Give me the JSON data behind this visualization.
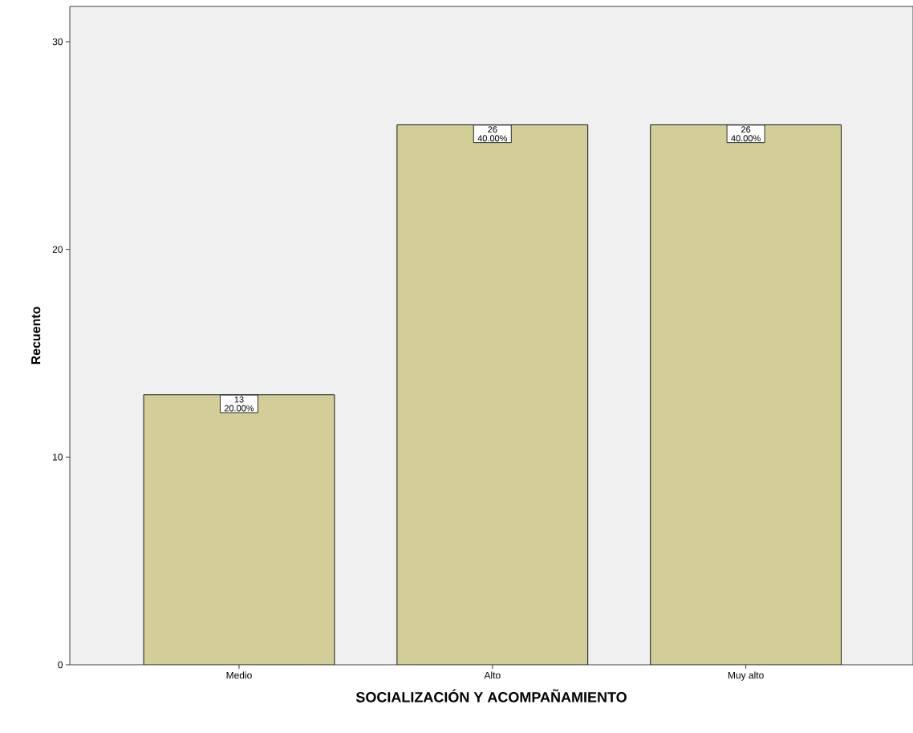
{
  "chart_data": {
    "type": "bar",
    "xlabel": "SOCIALIZACIÓN Y ACOMPAÑAMIENTO",
    "ylabel": "Recuento",
    "categories": [
      "Medio",
      "Alto",
      "Muy alto"
    ],
    "values": [
      13,
      26,
      26
    ],
    "value_labels": [
      "13 20.00%",
      "26 40.00%",
      "26 40.00%"
    ],
    "color": "#d3ce98",
    "ylim": [
      0,
      31.7
    ],
    "yticks": [
      0,
      10,
      20,
      30
    ]
  }
}
